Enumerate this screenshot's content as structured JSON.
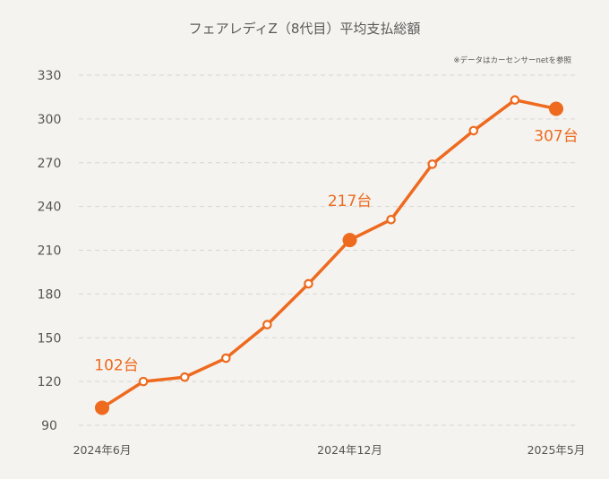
{
  "title": "フェアレディZ（8代目）平均支払総額",
  "note": "※データはカーセンサーnetを参照",
  "colors": {
    "accent": "#ee6a1f",
    "background": "#f5f3ef",
    "grid": "#d8d6d2",
    "text": "#555555"
  },
  "chart_data": {
    "type": "line",
    "title": "フェアレディZ（8代目）平均支払総額",
    "xlabel": "",
    "ylabel": "",
    "ylim": [
      90,
      330
    ],
    "yticks": [
      90,
      120,
      150,
      180,
      210,
      240,
      270,
      300,
      330
    ],
    "x_tick_labels": [
      {
        "index": 0,
        "label": "2024年6月"
      },
      {
        "index": 6,
        "label": "2024年12月"
      },
      {
        "index": 11,
        "label": "2025年5月"
      }
    ],
    "grid": true,
    "series": [
      {
        "name": "平均支払総額",
        "unit": "台",
        "values": [
          102,
          120,
          123,
          136,
          159,
          187,
          217,
          231,
          269,
          292,
          313,
          307
        ]
      }
    ],
    "highlights": [
      {
        "index": 0,
        "label": "102台"
      },
      {
        "index": 6,
        "label": "217台"
      },
      {
        "index": 11,
        "label": "307台"
      }
    ]
  }
}
